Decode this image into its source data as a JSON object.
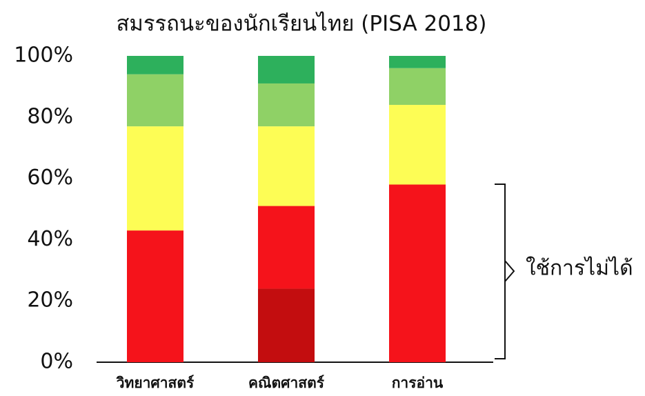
{
  "chart_data": {
    "type": "stacked_bar",
    "title": "สมรรถนะของนักเรียนไทย (PISA 2018)",
    "categories": [
      "วิทยาศาสตร์",
      "คณิตศาสตร์",
      "การอ่าน"
    ],
    "series": [
      {
        "color": "#c30d0f",
        "values": [
          0,
          24,
          0
        ]
      },
      {
        "color": "#f5131b",
        "values": [
          43,
          27,
          58
        ]
      },
      {
        "color": "#fdfd55",
        "values": [
          34,
          26,
          26
        ]
      },
      {
        "color": "#8fd166",
        "values": [
          17,
          14,
          12
        ]
      },
      {
        "color": "#2db05c",
        "values": [
          6,
          9,
          4
        ]
      }
    ],
    "ylim": [
      0,
      100
    ],
    "yticks": [
      {
        "value": 0,
        "label": "0%"
      },
      {
        "value": 20,
        "label": "20%"
      },
      {
        "value": 40,
        "label": "40%"
      },
      {
        "value": 60,
        "label": "60%"
      },
      {
        "value": 80,
        "label": "80%"
      },
      {
        "value": 100,
        "label": "100%"
      }
    ],
    "annotation": "ใช้การไม่ได้"
  }
}
